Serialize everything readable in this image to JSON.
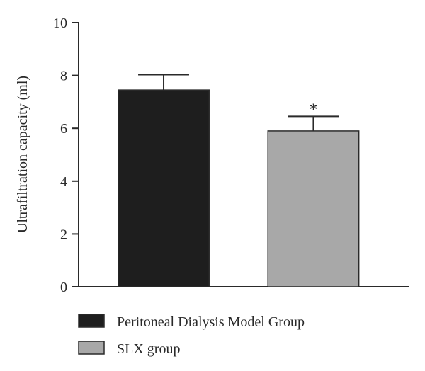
{
  "chart_data": {
    "type": "bar",
    "categories": [
      "Peritoneal Dialysis Model Group",
      "SLX group"
    ],
    "values": [
      7.45,
      5.9
    ],
    "errors": [
      0.58,
      0.55
    ],
    "colors": [
      "#1e1e1e",
      "#a8a8a8"
    ],
    "ylabel": "Ultrafiltration capacity (ml)",
    "ylim": [
      0,
      10
    ],
    "yticks": [
      0,
      2,
      4,
      6,
      8,
      10
    ],
    "grid": false,
    "legend_position": "bottom-left",
    "annotations": [
      {
        "category": "SLX group",
        "text": "*"
      }
    ]
  }
}
